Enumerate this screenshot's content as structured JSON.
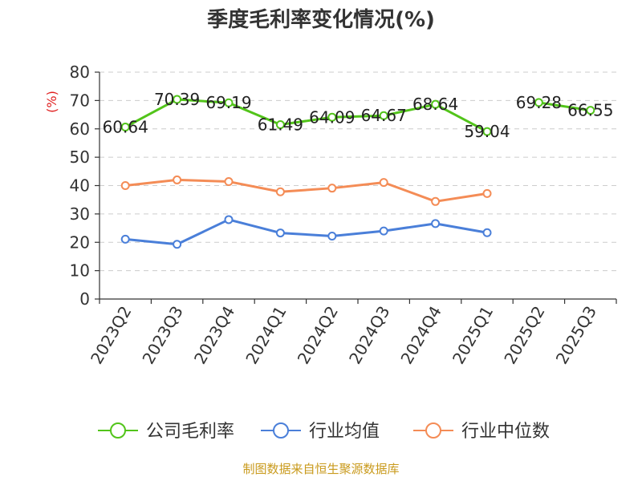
{
  "chart_data": {
    "type": "line",
    "title": "季度毛利率变化情况(%)",
    "ylabel": "(%)",
    "xlabel": "",
    "categories": [
      "2023Q2",
      "2023Q3",
      "2023Q4",
      "2024Q1",
      "2024Q2",
      "2024Q3",
      "2024Q4",
      "2025Q1",
      "2025Q2",
      "2025Q3"
    ],
    "ylim": [
      0,
      80
    ],
    "yticks": [
      0,
      10,
      20,
      30,
      40,
      50,
      60,
      70,
      80
    ],
    "grid": true,
    "legend_position": "bottom",
    "series": [
      {
        "name": "公司毛利率",
        "color": "#52c41a",
        "values": [
          60.64,
          70.39,
          69.19,
          61.49,
          64.09,
          64.67,
          68.64,
          59.04,
          69.28,
          66.55
        ],
        "labels": [
          "60.64",
          "70.39",
          "69.19",
          "61.49",
          "64.09",
          "64.67",
          "68.64",
          "59.04",
          "69.28",
          "66.55"
        ],
        "show_labels": true,
        "segments_break_after": [
          7
        ]
      },
      {
        "name": "行业均值",
        "color": "#4a7fd9",
        "values": [
          21.1,
          19.3,
          28.0,
          23.3,
          22.2,
          24.0,
          26.6,
          23.4,
          null,
          null
        ],
        "show_labels": false
      },
      {
        "name": "行业中位数",
        "color": "#f48c56",
        "values": [
          40.0,
          42.0,
          41.4,
          37.8,
          39.1,
          41.1,
          34.4,
          37.2,
          null,
          null
        ],
        "show_labels": false
      }
    ]
  },
  "source_text": "制图数据来自恒生聚源数据库"
}
